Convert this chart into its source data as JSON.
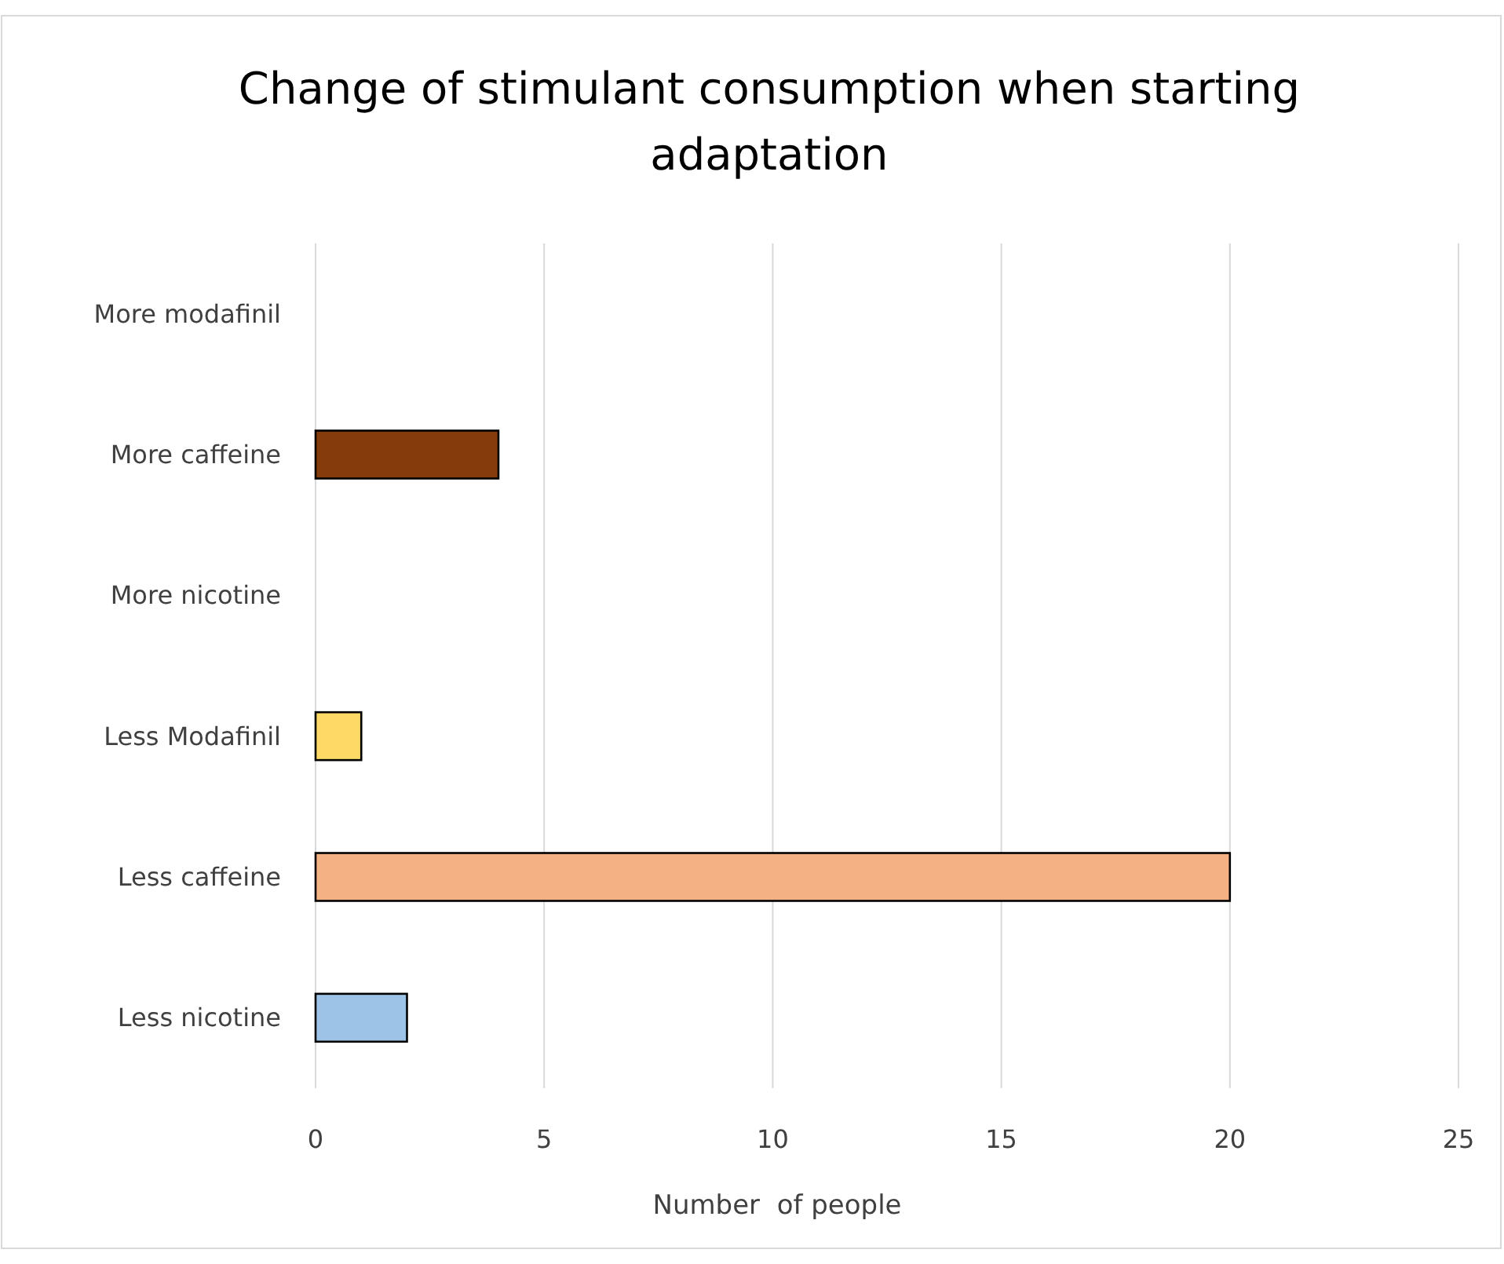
{
  "chart_data": {
    "type": "bar",
    "orientation": "horizontal",
    "title": "Change of stimulant consumption when starting adaptation",
    "xlabel": "Number  of people",
    "categories": [
      "More modafinil",
      "More caffeine",
      "More nicotine",
      "Less Modafinil",
      "Less caffeine",
      "Less nicotine"
    ],
    "values": [
      0,
      4,
      0,
      1,
      20,
      2
    ],
    "colors": [
      null,
      "#843c0c",
      null,
      "#ffd966",
      "#f4b183",
      "#9dc3e6"
    ],
    "xlim": [
      0,
      25
    ],
    "xticks": [
      0,
      5,
      10,
      15,
      20,
      25
    ],
    "grid": "x"
  }
}
